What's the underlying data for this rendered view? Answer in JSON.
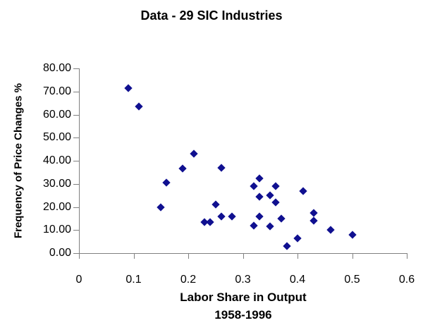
{
  "chart_data": {
    "type": "scatter",
    "title": "Data - 29 SIC Industries",
    "grid": false,
    "legend": false,
    "marker": {
      "shape": "diamond",
      "color": "#101090"
    },
    "x_axis": {
      "label": "Labor Share in Output",
      "sublabel": "1958-1996",
      "min": 0,
      "max": 0.6,
      "ticks": [
        {
          "v": 0.0,
          "label": "0"
        },
        {
          "v": 0.1,
          "label": "0.1"
        },
        {
          "v": 0.2,
          "label": "0.2"
        },
        {
          "v": 0.3,
          "label": "0.3"
        },
        {
          "v": 0.4,
          "label": "0.4"
        },
        {
          "v": 0.5,
          "label": "0.5"
        },
        {
          "v": 0.6,
          "label": "0.6"
        }
      ]
    },
    "y_axis": {
      "label": "Frequency of Price Changes %",
      "min": 0,
      "max": 80,
      "ticks": [
        {
          "v": 0,
          "label": "0.00"
        },
        {
          "v": 10,
          "label": "10.00"
        },
        {
          "v": 20,
          "label": "20.00"
        },
        {
          "v": 30,
          "label": "30.00"
        },
        {
          "v": 40,
          "label": "40.00"
        },
        {
          "v": 50,
          "label": "50.00"
        },
        {
          "v": 60,
          "label": "60.00"
        },
        {
          "v": 70,
          "label": "70.00"
        },
        {
          "v": 80,
          "label": "80.00"
        }
      ]
    },
    "points": [
      [
        0.09,
        71.5
      ],
      [
        0.11,
        63.5
      ],
      [
        0.15,
        20.0
      ],
      [
        0.16,
        30.5
      ],
      [
        0.19,
        36.5
      ],
      [
        0.21,
        43.0
      ],
      [
        0.23,
        13.5
      ],
      [
        0.24,
        13.5
      ],
      [
        0.25,
        21.0
      ],
      [
        0.26,
        37.0
      ],
      [
        0.26,
        16.0
      ],
      [
        0.28,
        16.0
      ],
      [
        0.32,
        29.0
      ],
      [
        0.32,
        12.0
      ],
      [
        0.33,
        32.5
      ],
      [
        0.33,
        24.5
      ],
      [
        0.33,
        16.0
      ],
      [
        0.35,
        25.0
      ],
      [
        0.35,
        11.5
      ],
      [
        0.36,
        29.0
      ],
      [
        0.36,
        22.0
      ],
      [
        0.37,
        15.0
      ],
      [
        0.38,
        3.0
      ],
      [
        0.4,
        6.5
      ],
      [
        0.41,
        27.0
      ],
      [
        0.43,
        17.5
      ],
      [
        0.43,
        14.0
      ],
      [
        0.46,
        10.0
      ],
      [
        0.5,
        8.0
      ]
    ]
  }
}
